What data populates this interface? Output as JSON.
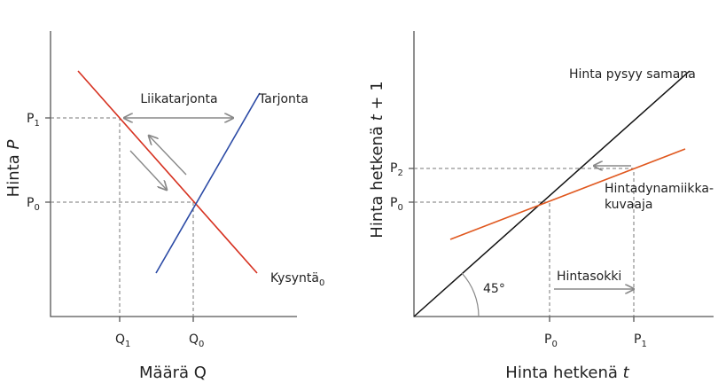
{
  "left": {
    "y_axis_label": {
      "text": "Hinta",
      "var": "P"
    },
    "x_axis_label": "Määrä Q",
    "y_ticks": [
      {
        "main": "P",
        "sub": "1"
      },
      {
        "main": "P",
        "sub": "0"
      }
    ],
    "x_ticks": [
      {
        "main": "Q",
        "sub": "1"
      },
      {
        "main": "Q",
        "sub": "0"
      }
    ],
    "excess_supply": "Liikatarjonta",
    "supply": "Tarjonta",
    "demand": {
      "main": "Kysyntä",
      "sub": "0"
    }
  },
  "right": {
    "y_axis_label": {
      "text": "Hinta hetkenä",
      "var": "t",
      "rest": "+ 1"
    },
    "x_axis_label": {
      "text": "Hinta hetkenä",
      "var": "t"
    },
    "line_45": "Hinta pysyy samana",
    "y_ticks": [
      {
        "main": "P",
        "sub": "2"
      },
      {
        "main": "P",
        "sub": "0"
      }
    ],
    "x_ticks": [
      {
        "main": "P",
        "sub": "0"
      },
      {
        "main": "P",
        "sub": "1"
      }
    ],
    "dynamics": [
      "Hintadynamiikka-",
      "kuvaaja"
    ],
    "shock": "Hintasokki",
    "angle": "45°"
  }
}
